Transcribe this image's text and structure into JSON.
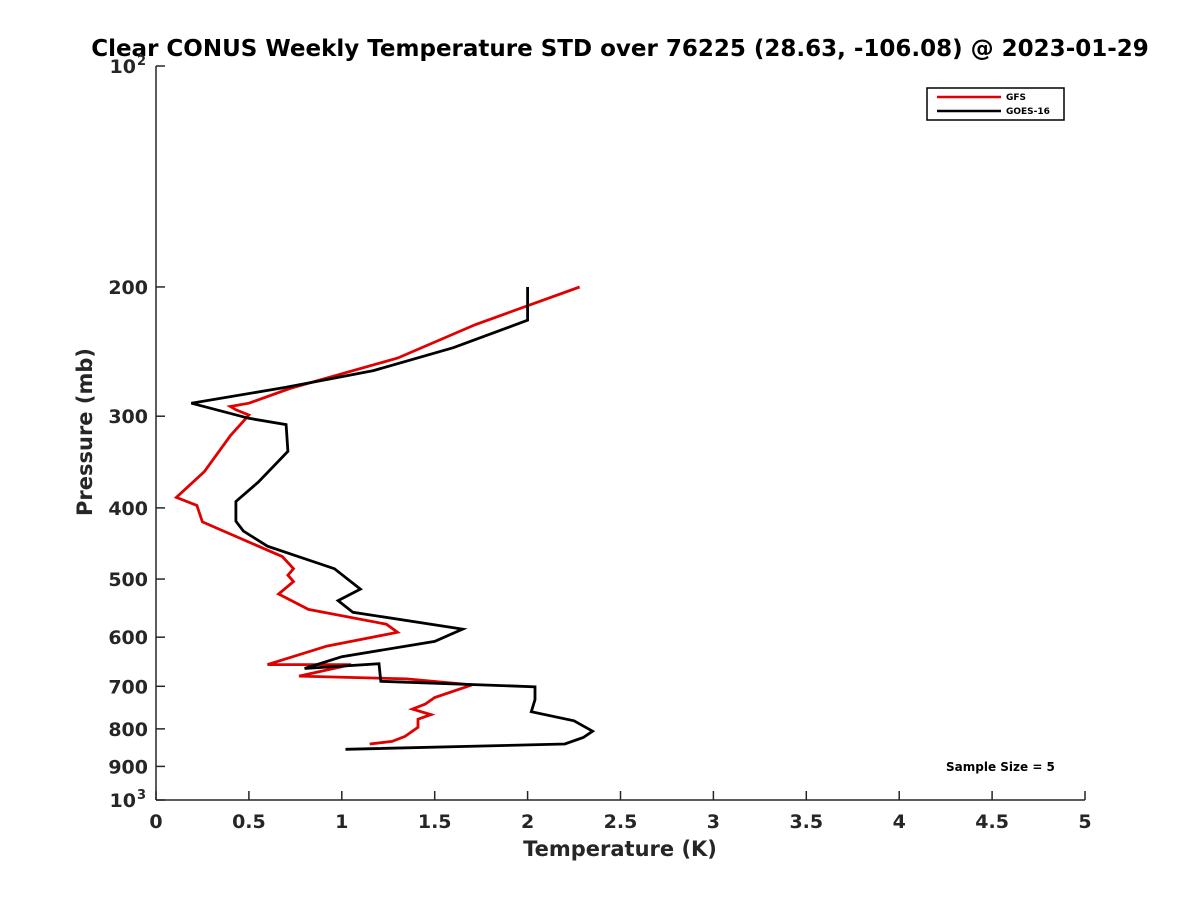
{
  "chart_data": {
    "type": "line",
    "title": "Clear CONUS Weekly Temperature STD over 76225 (28.63, -106.08) @ 2023-01-29",
    "xlabel": "Temperature (K)",
    "ylabel": "Pressure (mb)",
    "xlim": [
      0,
      5
    ],
    "ylim": [
      100,
      1000
    ],
    "y_scale": "log",
    "y_reversed": true,
    "x_ticks": [
      "0",
      "0.5",
      "1",
      "1.5",
      "2",
      "2.5",
      "3",
      "3.5",
      "4",
      "4.5",
      "5"
    ],
    "y_ticks": [
      {
        "value": 100,
        "label": "10",
        "sup": "2"
      },
      {
        "value": 200,
        "label": "200",
        "sup": ""
      },
      {
        "value": 300,
        "label": "300",
        "sup": ""
      },
      {
        "value": 400,
        "label": "400",
        "sup": ""
      },
      {
        "value": 500,
        "label": "500",
        "sup": ""
      },
      {
        "value": 600,
        "label": "600",
        "sup": ""
      },
      {
        "value": 700,
        "label": "700",
        "sup": ""
      },
      {
        "value": 800,
        "label": "800",
        "sup": ""
      },
      {
        "value": 900,
        "label": "900",
        "sup": ""
      },
      {
        "value": 1000,
        "label": "10",
        "sup": "3"
      }
    ],
    "grid": false,
    "legend_position": "top-right",
    "annotation": "Sample Size = 5",
    "series": [
      {
        "name": "GFS",
        "color": "#e00000",
        "points": [
          [
            2.28,
            200
          ],
          [
            1.72,
            225
          ],
          [
            1.3,
            250
          ],
          [
            0.72,
            275
          ],
          [
            0.5,
            288
          ],
          [
            0.4,
            291
          ],
          [
            0.43,
            294
          ],
          [
            0.5,
            299
          ],
          [
            0.4,
            319
          ],
          [
            0.26,
            357
          ],
          [
            0.11,
            387
          ],
          [
            0.22,
            397
          ],
          [
            0.25,
            418
          ],
          [
            0.68,
            466
          ],
          [
            0.74,
            484
          ],
          [
            0.71,
            494
          ],
          [
            0.74,
            504
          ],
          [
            0.66,
            524
          ],
          [
            0.82,
            550
          ],
          [
            1.24,
            576
          ],
          [
            1.3,
            591
          ],
          [
            0.92,
            617
          ],
          [
            0.6,
            654
          ],
          [
            1.05,
            654
          ],
          [
            0.77,
            678
          ],
          [
            1.35,
            684
          ],
          [
            1.7,
            697
          ],
          [
            1.5,
            725
          ],
          [
            1.45,
            740
          ],
          [
            1.38,
            752
          ],
          [
            1.48,
            765
          ],
          [
            1.41,
            776
          ],
          [
            1.41,
            796
          ],
          [
            1.34,
            819
          ],
          [
            1.27,
            832
          ],
          [
            1.15,
            839
          ]
        ]
      },
      {
        "name": "GOES-16",
        "color": "#000000",
        "points": [
          [
            2.0,
            200
          ],
          [
            2.0,
            210
          ],
          [
            2.0,
            222
          ],
          [
            1.6,
            242
          ],
          [
            1.17,
            260
          ],
          [
            0.7,
            274
          ],
          [
            0.19,
            288
          ],
          [
            0.5,
            302
          ],
          [
            0.7,
            308
          ],
          [
            0.71,
            335
          ],
          [
            0.55,
            369
          ],
          [
            0.43,
            392
          ],
          [
            0.43,
            417
          ],
          [
            0.47,
            430
          ],
          [
            0.6,
            451
          ],
          [
            0.96,
            484
          ],
          [
            1.1,
            516
          ],
          [
            0.98,
            535
          ],
          [
            1.06,
            555
          ],
          [
            1.65,
            585
          ],
          [
            1.5,
            608
          ],
          [
            1.0,
            638
          ],
          [
            0.8,
            662
          ],
          [
            1.2,
            652
          ],
          [
            1.21,
            689
          ],
          [
            2.04,
            701
          ],
          [
            2.04,
            730
          ],
          [
            2.02,
            758
          ],
          [
            2.25,
            780
          ],
          [
            2.35,
            806
          ],
          [
            2.3,
            822
          ],
          [
            2.2,
            839
          ],
          [
            1.02,
            853
          ]
        ]
      }
    ]
  }
}
